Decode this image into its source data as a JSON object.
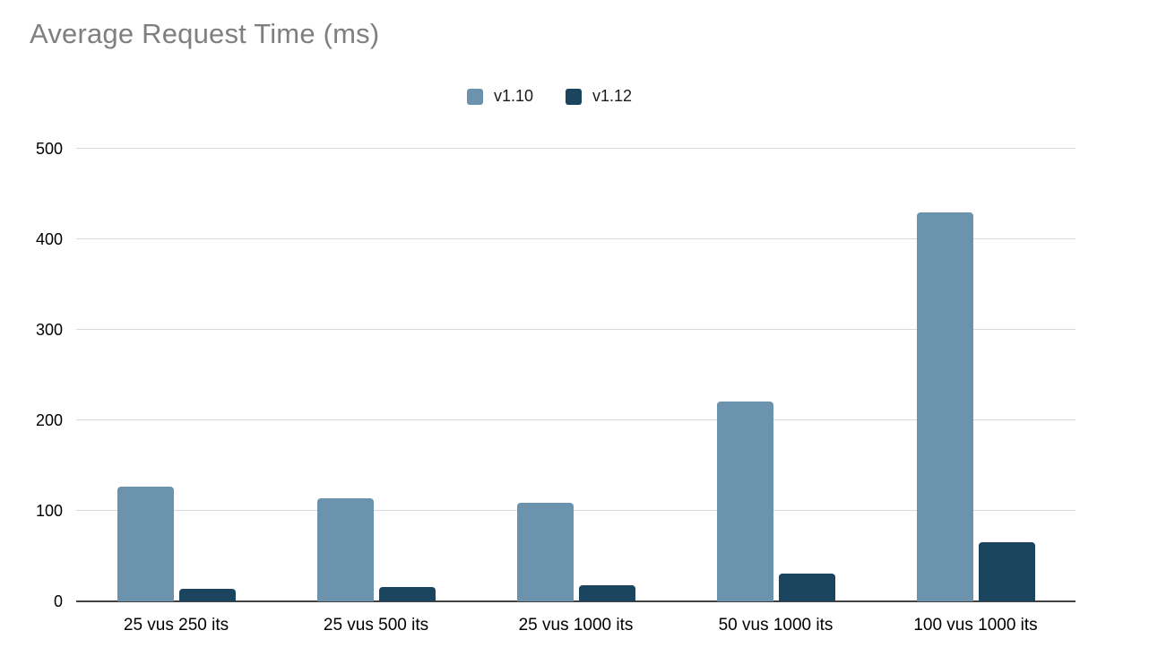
{
  "title": {
    "text": "Average Request Time (ms)",
    "color": "#7f7f7f"
  },
  "chart_data": {
    "type": "bar",
    "title": "Average Request Time (ms)",
    "categories": [
      "25 vus 250 its",
      "25 vus 500 its",
      "25 vus 1000 its",
      "50 vus 1000 its",
      "100 vus 1000 its"
    ],
    "series": [
      {
        "name": "v1.10",
        "color": "#6b93ad",
        "values": [
          127,
          114,
          109,
          221,
          430
        ]
      },
      {
        "name": "v1.12",
        "color": "#1b445e",
        "values": [
          14,
          16,
          18,
          31,
          65
        ]
      }
    ],
    "xlabel": "",
    "ylabel": "",
    "ylim": [
      0,
      500
    ],
    "y_ticks": [
      0,
      100,
      200,
      300,
      400,
      500
    ],
    "grid": true,
    "legend_position": "top-center"
  },
  "colors": {
    "gridline": "#d9d9d9",
    "axis": "#424242",
    "tick_text": "#000000"
  }
}
